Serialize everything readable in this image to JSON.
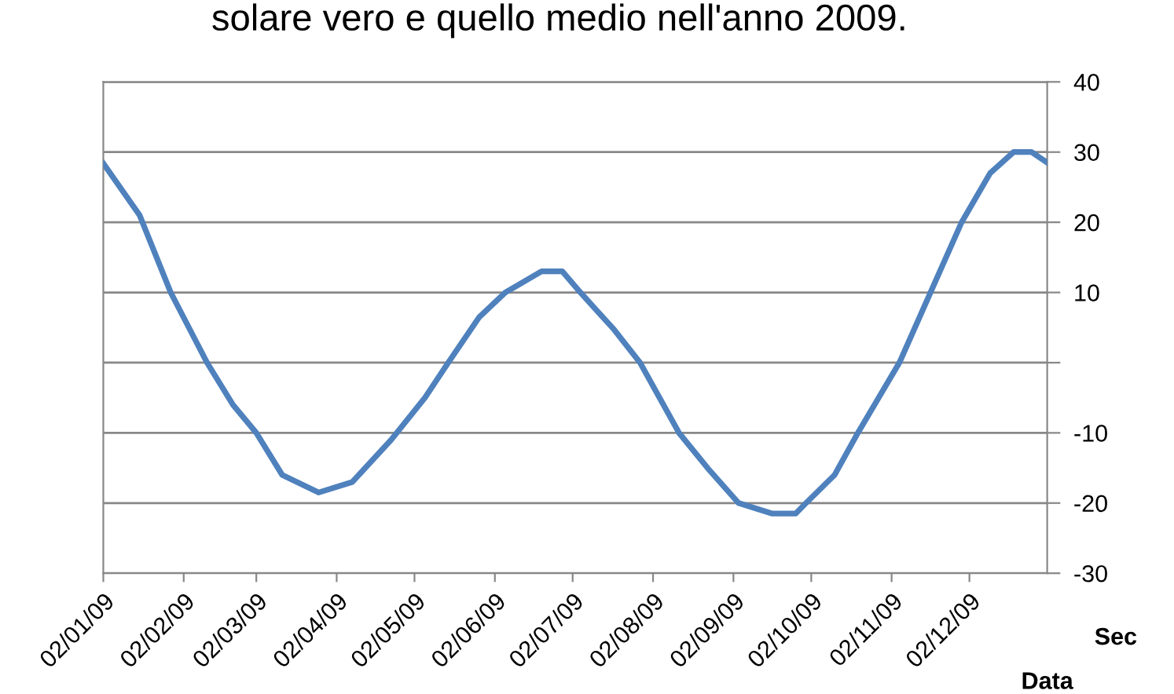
{
  "chart_data": {
    "type": "line",
    "title": "solare vero e quello medio nell'anno 2009.",
    "xlabel": "Data",
    "ylabel": "Sec",
    "x": [
      "2009-01-02",
      "2009-01-16",
      "2009-01-28",
      "2009-02-11",
      "2009-02-21",
      "2009-03-02",
      "2009-03-12",
      "2009-03-26",
      "2009-04-08",
      "2009-04-23",
      "2009-05-06",
      "2009-05-15",
      "2009-05-27",
      "2009-06-06",
      "2009-06-20",
      "2009-06-28",
      "2009-07-05",
      "2009-07-18",
      "2009-07-28",
      "2009-08-12",
      "2009-08-23",
      "2009-09-04",
      "2009-09-17",
      "2009-09-26",
      "2009-09-30",
      "2009-10-11",
      "2009-10-20",
      "2009-11-05",
      "2009-11-17",
      "2009-11-29",
      "2009-12-10",
      "2009-12-19",
      "2009-12-26",
      "2010-01-01"
    ],
    "series": [
      {
        "color": "#4f81bd",
        "values": [
          28.4,
          21,
          10,
          0,
          -6,
          -10,
          -16,
          -18.5,
          -17,
          -11,
          -5,
          0,
          6.5,
          10,
          13,
          13,
          10,
          4.7,
          0,
          -10,
          -15,
          -20,
          -21.5,
          -21.5,
          -20,
          -16,
          -10,
          0,
          10,
          20,
          27,
          30,
          30,
          28.5
        ]
      }
    ],
    "xlim": [
      "2009-01-02",
      "2010-01-01"
    ],
    "xticks": [
      {
        "value": "2009-01-02",
        "label": "02/01/09"
      },
      {
        "value": "2009-02-02",
        "label": "02/02/09"
      },
      {
        "value": "2009-03-02",
        "label": "02/03/09"
      },
      {
        "value": "2009-04-02",
        "label": "02/04/09"
      },
      {
        "value": "2009-05-02",
        "label": "02/05/09"
      },
      {
        "value": "2009-06-02",
        "label": "02/06/09"
      },
      {
        "value": "2009-07-02",
        "label": "02/07/09"
      },
      {
        "value": "2009-08-02",
        "label": "02/08/09"
      },
      {
        "value": "2009-09-02",
        "label": "02/09/09"
      },
      {
        "value": "2009-10-02",
        "label": "02/10/09"
      },
      {
        "value": "2009-11-02",
        "label": "02/11/09"
      },
      {
        "value": "2009-12-02",
        "label": "02/12/09"
      }
    ],
    "ylim": [
      -30,
      40
    ],
    "yticks": [
      -30,
      -20,
      -10,
      {
        "value": 0,
        "label": null
      },
      10,
      20,
      30,
      40
    ],
    "grid": "y",
    "marker": "none",
    "line_style": "solid"
  }
}
